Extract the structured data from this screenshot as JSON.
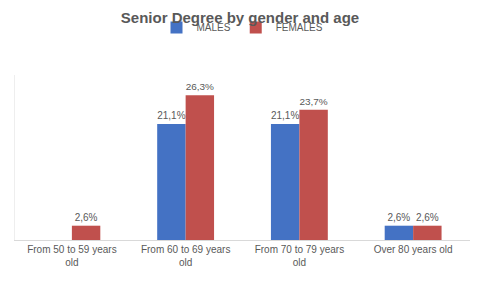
{
  "chart_data": {
    "type": "bar",
    "title": "Senior Degree by gender and age",
    "categories": [
      "From 50 to 59 years old",
      "From 60 to 69 years old",
      "From 70 to 79 years old",
      "Over 80 years old"
    ],
    "series": [
      {
        "name": "MALES",
        "color": "#4472C4",
        "values": [
          null,
          21.1,
          21.1,
          2.6
        ],
        "value_labels": [
          null,
          "21,1%",
          "21,1%",
          "2,6%"
        ]
      },
      {
        "name": "FEMALES",
        "color": "#C0504D",
        "values": [
          2.6,
          26.3,
          23.7,
          2.6
        ],
        "value_labels": [
          "2,6%",
          "26,3%",
          "23,7%",
          "2,6%"
        ]
      }
    ],
    "ylim": [
      0,
      30
    ],
    "grid": false,
    "legend": "top",
    "data_labels": true,
    "tick_labels": "x"
  }
}
